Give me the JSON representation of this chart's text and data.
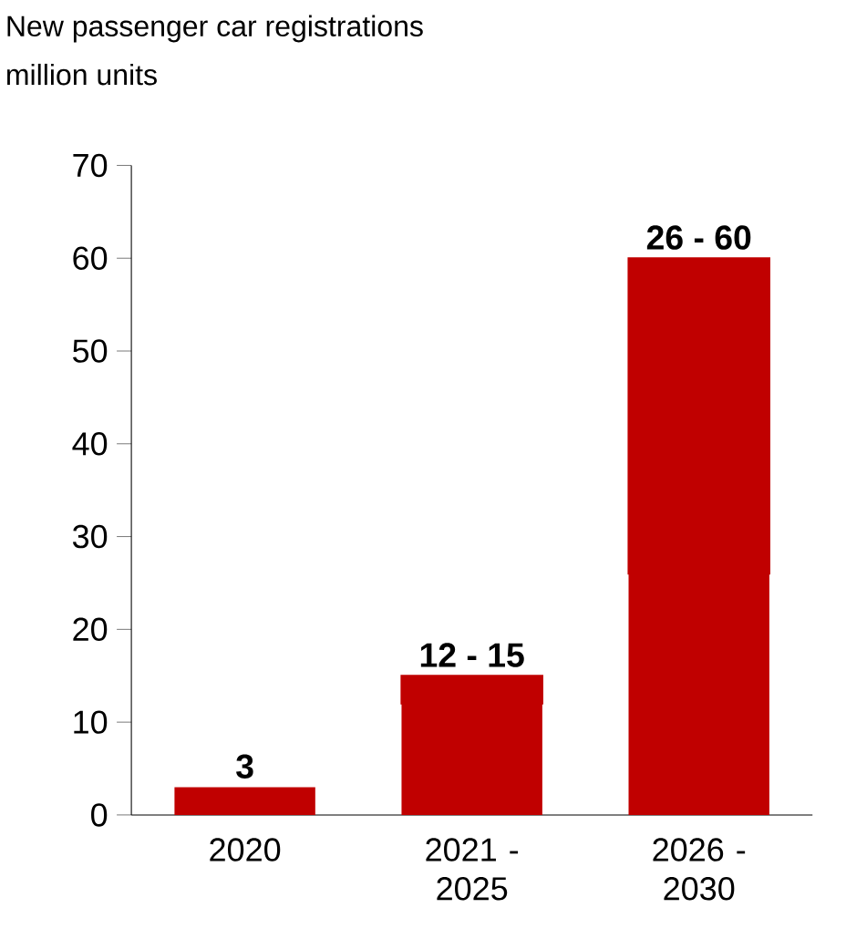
{
  "chart_data": {
    "type": "bar",
    "title": "New passenger car registrations",
    "subtitle": "million units",
    "categories": [
      "2020",
      "2021 - 2025",
      "2026 - 2030"
    ],
    "stacked": true,
    "series": [
      {
        "color": "#c00000",
        "values": [
          3,
          12,
          26
        ]
      },
      {
        "color": "#c00000",
        "values": [
          null,
          3,
          34
        ]
      }
    ],
    "totals": [
      "3",
      "12 - 15",
      "26 - 60"
    ],
    "ylim": [
      0,
      70
    ],
    "yticks": [
      0,
      10,
      20,
      30,
      40,
      50,
      60,
      70
    ]
  }
}
